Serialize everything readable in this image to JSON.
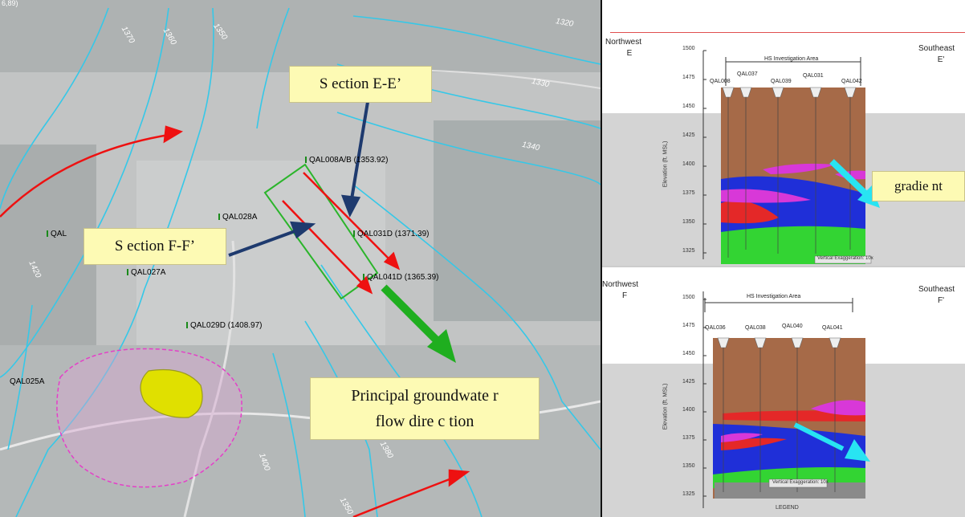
{
  "map": {
    "coord_fragment": "6,89)",
    "contours": [
      "1370",
      "1360",
      "1350",
      "1320",
      "1330",
      "1340",
      "1420",
      "1400",
      "1390",
      "1380",
      "1350"
    ],
    "wells": [
      {
        "id": "QAL008A/B (1353.92)"
      },
      {
        "id": "QAL028A"
      },
      {
        "id": "QAL"
      },
      {
        "id": "QAL031D (1371.39)"
      },
      {
        "id": "QAL027A"
      },
      {
        "id": "QAL041D (1365.39)"
      },
      {
        "id": "QAL029D (1408.97)"
      },
      {
        "id": "QAL025A"
      }
    ],
    "callouts": {
      "section_e": "S ection E-E’",
      "section_f": "S ection F-F’",
      "flow_line1": "Principal groundwate r",
      "flow_line2": "flow dire c tion",
      "gradient": "gradie nt"
    },
    "colors": {
      "contour": "#35c8e8",
      "flow_arrow": "#1fae1f",
      "red_arrow": "#e11",
      "navy_arrow": "#1e3a6e",
      "plume_outer": "#e43fc8",
      "plume_core": "#e0e000",
      "section_box": "#2bb52b"
    }
  },
  "section_e": {
    "left_label": "Northwest",
    "left_letter": "E",
    "right_label": "Southeast",
    "right_letter": "E'",
    "area": "HS Investigation Area",
    "wells": [
      "QAL008",
      "QAL037",
      "QAL039",
      "QAL031",
      "QAL042"
    ],
    "yticks": [
      "1500",
      "1475",
      "1450",
      "1425",
      "1400",
      "1375",
      "1350",
      "1325"
    ],
    "ylabel": "Elevation (ft. MSL)",
    "exaggeration": "Vertical Exaggeration: 10x"
  },
  "section_f": {
    "left_label": "Northwest",
    "left_letter": "F",
    "right_label": "Southeast",
    "right_letter": "F'",
    "area": "HS Investigation Area",
    "wells": [
      "QAL036",
      "QAL038",
      "QAL040",
      "QAL041"
    ],
    "yticks": [
      "1500",
      "1475",
      "1450",
      "1425",
      "1400",
      "1375",
      "1350",
      "1325"
    ],
    "ylabel": "Elevation (ft. MSL)",
    "exaggeration": "Vertical Exaggeration: 10x",
    "legend": "LEGEND"
  }
}
